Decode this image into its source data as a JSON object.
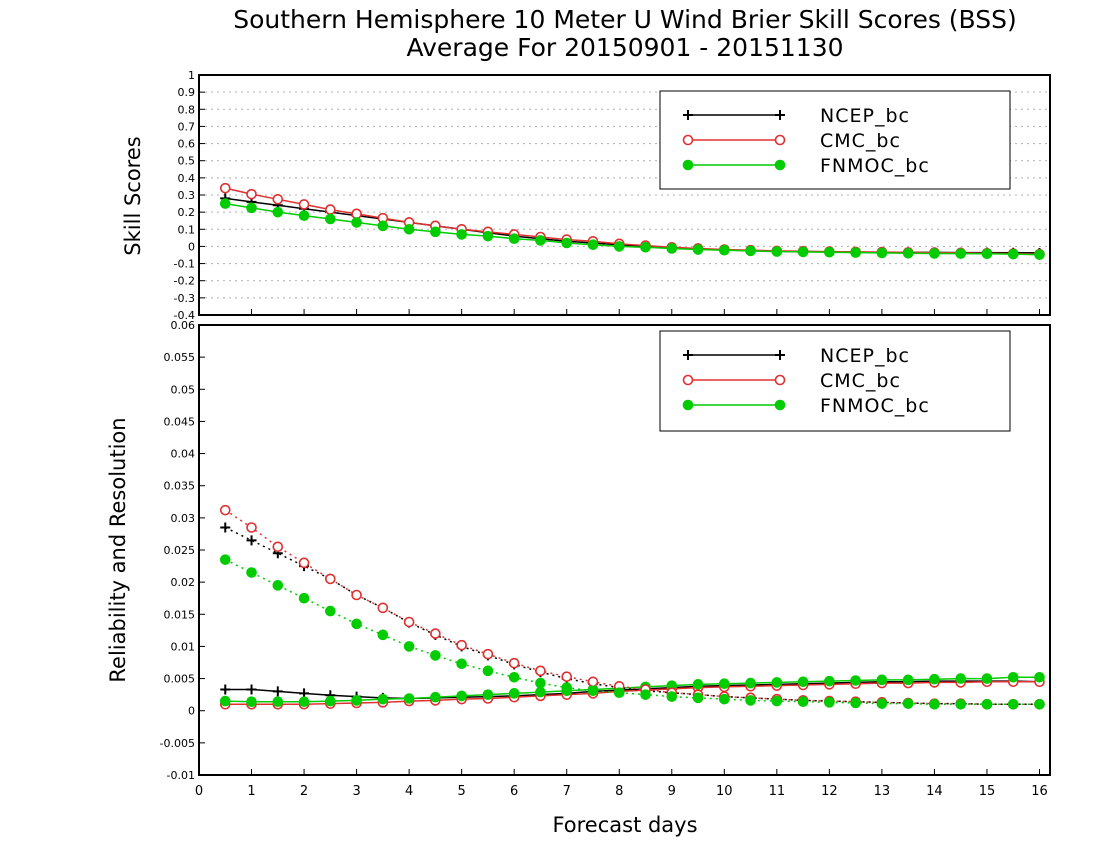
{
  "title": "Southern Hemisphere 10 Meter U Wind Brier Skill Scores (BSS)",
  "subtitle": "Average For 20150901 - 20151130",
  "colors": {
    "NCEP_bc": "#000000",
    "CMC_bc": "#e03030",
    "FNMOC_bc": "#00cc00"
  },
  "chart_data": [
    {
      "type": "line",
      "ylabel": "Skill Scores",
      "xlabel": "",
      "xlim": [
        0,
        16.2
      ],
      "ylim": [
        -0.4,
        1
      ],
      "xticks": [
        "0",
        "1",
        "2",
        "3",
        "4",
        "5",
        "6",
        "7",
        "8",
        "9",
        "10",
        "11",
        "12",
        "13",
        "14",
        "15",
        "16"
      ],
      "yticks": [
        "-0.4",
        "-0.3",
        "-0.2",
        "-0.1",
        "0",
        "0.1",
        "0.2",
        "0.3",
        "0.4",
        "0.5",
        "0.6",
        "0.7",
        "0.8",
        "0.9",
        "1"
      ],
      "grid": true,
      "legend_position": "top-right",
      "x": [
        0.5,
        1,
        1.5,
        2,
        2.5,
        3,
        3.5,
        4,
        4.5,
        5,
        5.5,
        6,
        6.5,
        7,
        7.5,
        8,
        8.5,
        9,
        9.5,
        10,
        10.5,
        11,
        11.5,
        12,
        12.5,
        13,
        13.5,
        14,
        14.5,
        15,
        15.5,
        16
      ],
      "series": [
        {
          "name": "NCEP_bc",
          "marker": "plus",
          "style": "solid",
          "values": [
            0.28,
            0.26,
            0.24,
            0.22,
            0.2,
            0.18,
            0.16,
            0.14,
            0.12,
            0.1,
            0.08,
            0.06,
            0.045,
            0.03,
            0.02,
            0.01,
            0.0,
            -0.01,
            -0.015,
            -0.02,
            -0.025,
            -0.028,
            -0.03,
            -0.032,
            -0.033,
            -0.034,
            -0.035,
            -0.035,
            -0.036,
            -0.036,
            -0.037,
            -0.038
          ]
        },
        {
          "name": "CMC_bc",
          "marker": "open-circle",
          "style": "solid",
          "values": [
            0.34,
            0.305,
            0.275,
            0.245,
            0.215,
            0.19,
            0.165,
            0.14,
            0.12,
            0.1,
            0.085,
            0.07,
            0.055,
            0.04,
            0.03,
            0.015,
            0.005,
            -0.005,
            -0.012,
            -0.018,
            -0.022,
            -0.026,
            -0.028,
            -0.03,
            -0.032,
            -0.033,
            -0.035,
            -0.036,
            -0.038,
            -0.04,
            -0.042,
            -0.045
          ]
        },
        {
          "name": "FNMOC_bc",
          "marker": "filled-circle",
          "style": "solid",
          "values": [
            0.25,
            0.225,
            0.2,
            0.18,
            0.16,
            0.14,
            0.12,
            0.1,
            0.085,
            0.07,
            0.06,
            0.045,
            0.035,
            0.02,
            0.01,
            0.0,
            -0.005,
            -0.012,
            -0.018,
            -0.022,
            -0.026,
            -0.03,
            -0.032,
            -0.034,
            -0.036,
            -0.038,
            -0.04,
            -0.041,
            -0.042,
            -0.043,
            -0.045,
            -0.048
          ]
        }
      ]
    },
    {
      "type": "line",
      "ylabel": "Reliability and Resolution",
      "xlabel": "Forecast days",
      "xlim": [
        0,
        16.2
      ],
      "ylim": [
        -0.01,
        0.06
      ],
      "xticks": [
        "0",
        "1",
        "2",
        "3",
        "4",
        "5",
        "6",
        "7",
        "8",
        "9",
        "10",
        "11",
        "12",
        "13",
        "14",
        "15",
        "16"
      ],
      "yticks": [
        "-0.01",
        "-0.005",
        "0",
        "0.005",
        "0.01",
        "0.015",
        "0.02",
        "0.025",
        "0.03",
        "0.035",
        "0.04",
        "0.045",
        "0.05",
        "0.055",
        "0.06"
      ],
      "grid": false,
      "legend_position": "top-right",
      "x": [
        0.5,
        1,
        1.5,
        2,
        2.5,
        3,
        3.5,
        4,
        4.5,
        5,
        5.5,
        6,
        6.5,
        7,
        7.5,
        8,
        8.5,
        9,
        9.5,
        10,
        10.5,
        11,
        11.5,
        12,
        12.5,
        13,
        13.5,
        14,
        14.5,
        15,
        15.5,
        16
      ],
      "series": [
        {
          "name": "NCEP_bc",
          "marker": "plus",
          "style": "solid",
          "values": [
            0.0033,
            0.0033,
            0.003,
            0.0027,
            0.0024,
            0.0022,
            0.002,
            0.0019,
            0.002,
            0.0021,
            0.0022,
            0.0023,
            0.0025,
            0.0027,
            0.003,
            0.0032,
            0.0034,
            0.0036,
            0.0038,
            0.0039,
            0.004,
            0.0041,
            0.0042,
            0.0043,
            0.0044,
            0.0045,
            0.0045,
            0.0046,
            0.0046,
            0.0046,
            0.0046,
            0.0045
          ]
        },
        {
          "name": "CMC_bc",
          "marker": "open-circle",
          "style": "solid",
          "values": [
            0.001,
            0.001,
            0.001,
            0.001,
            0.0011,
            0.0012,
            0.0013,
            0.0015,
            0.0016,
            0.0018,
            0.0019,
            0.0021,
            0.0023,
            0.0025,
            0.0027,
            0.003,
            0.0032,
            0.0034,
            0.0036,
            0.0037,
            0.0038,
            0.0039,
            0.004,
            0.0041,
            0.0042,
            0.0043,
            0.0043,
            0.0044,
            0.0044,
            0.0045,
            0.0045,
            0.0045
          ]
        },
        {
          "name": "FNMOC_bc",
          "marker": "filled-circle",
          "style": "solid",
          "values": [
            0.0015,
            0.0014,
            0.0014,
            0.0014,
            0.0015,
            0.0016,
            0.0018,
            0.0019,
            0.0021,
            0.0023,
            0.0025,
            0.0027,
            0.0029,
            0.0031,
            0.0033,
            0.0035,
            0.0037,
            0.0039,
            0.0041,
            0.0042,
            0.0043,
            0.0044,
            0.0045,
            0.0046,
            0.0047,
            0.0048,
            0.0048,
            0.0049,
            0.005,
            0.005,
            0.0052,
            0.0052
          ]
        },
        {
          "name": "",
          "color": "NCEP_bc",
          "marker": "plus",
          "style": "dotted",
          "values": [
            0.0285,
            0.0265,
            0.0245,
            0.0225,
            0.0205,
            0.018,
            0.016,
            0.0137,
            0.0118,
            0.01,
            0.0086,
            0.0072,
            0.006,
            0.005,
            0.0042,
            0.0036,
            0.0031,
            0.0028,
            0.0025,
            0.0022,
            0.002,
            0.0018,
            0.0016,
            0.0015,
            0.0014,
            0.0013,
            0.0012,
            0.0011,
            0.0011,
            0.001,
            0.001,
            0.001
          ]
        },
        {
          "name": "",
          "color": "CMC_bc",
          "marker": "open-circle",
          "style": "dotted",
          "values": [
            0.0312,
            0.0285,
            0.0255,
            0.023,
            0.0205,
            0.018,
            0.016,
            0.0138,
            0.012,
            0.0102,
            0.0088,
            0.0074,
            0.0062,
            0.0053,
            0.0045,
            0.0038,
            0.0033,
            0.0028,
            0.0025,
            0.0022,
            0.002,
            0.0018,
            0.0016,
            0.0015,
            0.0014,
            0.0013,
            0.0012,
            0.0011,
            0.0011,
            0.001,
            0.001,
            0.001
          ]
        },
        {
          "name": "",
          "color": "FNMOC_bc",
          "marker": "filled-circle",
          "style": "dotted",
          "values": [
            0.0235,
            0.0215,
            0.0195,
            0.0175,
            0.0155,
            0.0135,
            0.0118,
            0.01,
            0.0086,
            0.0073,
            0.0062,
            0.0052,
            0.0043,
            0.0036,
            0.0031,
            0.0028,
            0.0025,
            0.0022,
            0.002,
            0.0018,
            0.0016,
            0.0015,
            0.0014,
            0.0013,
            0.0012,
            0.0011,
            0.0011,
            0.001,
            0.001,
            0.001,
            0.001,
            0.001
          ]
        }
      ]
    }
  ]
}
